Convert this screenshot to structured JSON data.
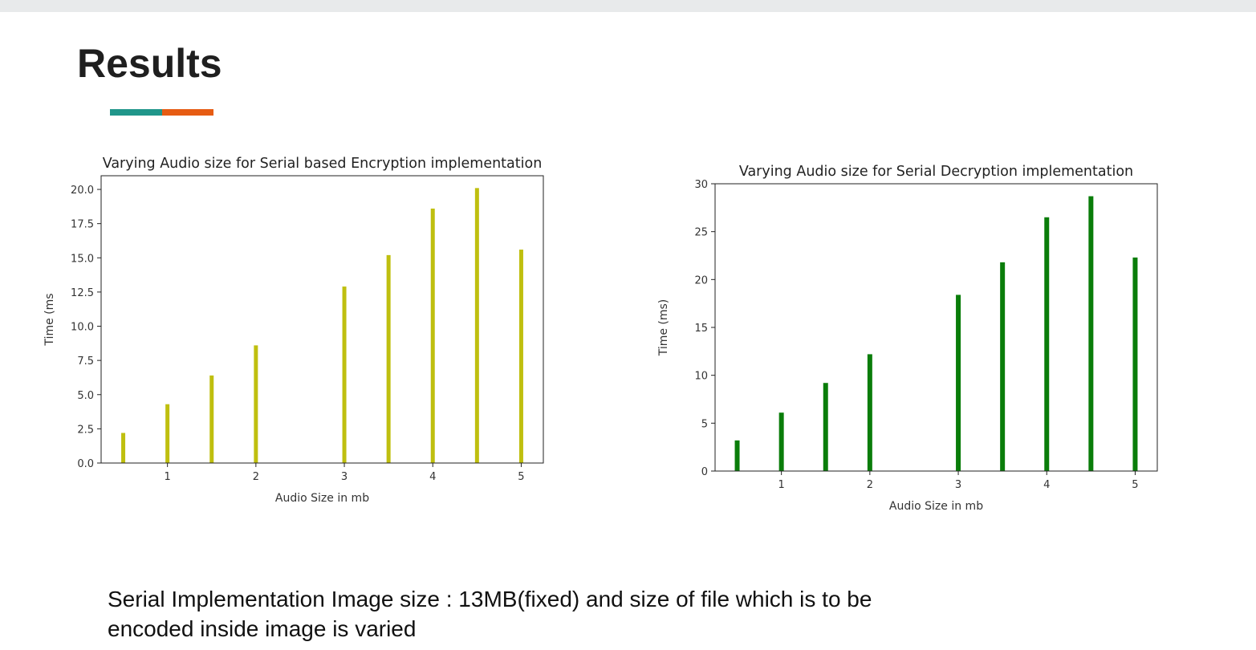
{
  "slide": {
    "title": "Results",
    "accent_colors": [
      "#20968a",
      "#e65c13"
    ],
    "caption_lines": [
      "Serial Implementation Image size : 13MB(fixed) and size of file which is to be",
      "encoded inside image is varied"
    ]
  },
  "chart_data": [
    {
      "type": "bar",
      "title": "Varying Audio size for Serial based Encryption implementation",
      "xlabel": "Audio Size in mb",
      "ylabel": "Time (ms",
      "color": "#bfbf0f",
      "x": [
        0.5,
        1,
        1.5,
        2,
        3,
        3.5,
        4,
        4.5,
        5
      ],
      "values": [
        2.2,
        4.3,
        6.4,
        8.6,
        12.9,
        15.2,
        18.6,
        20.1,
        15.6
      ],
      "xlim": [
        0.25,
        5.25
      ],
      "ylim": [
        0,
        21
      ],
      "xticks": [
        "1",
        "2",
        "3",
        "4",
        "5"
      ],
      "yticks": [
        "0.0",
        "2.5",
        "5.0",
        "7.5",
        "10.0",
        "12.5",
        "15.0",
        "17.5",
        "20.0"
      ],
      "grid": false
    },
    {
      "type": "bar",
      "title": "Varying Audio size for Serial Decryption implementation",
      "xlabel": "Audio Size in mb",
      "ylabel": "Time (ms)",
      "color": "#0a7d0a",
      "x": [
        0.5,
        1,
        1.5,
        2,
        3,
        3.5,
        4,
        4.5,
        5
      ],
      "values": [
        3.2,
        6.1,
        9.2,
        12.2,
        18.4,
        21.8,
        26.5,
        28.7,
        22.3
      ],
      "xlim": [
        0.25,
        5.25
      ],
      "ylim": [
        0,
        30
      ],
      "xticks": [
        "1",
        "2",
        "3",
        "4",
        "5"
      ],
      "yticks": [
        "0",
        "5",
        "10",
        "15",
        "20",
        "25",
        "30"
      ],
      "grid": false
    }
  ]
}
